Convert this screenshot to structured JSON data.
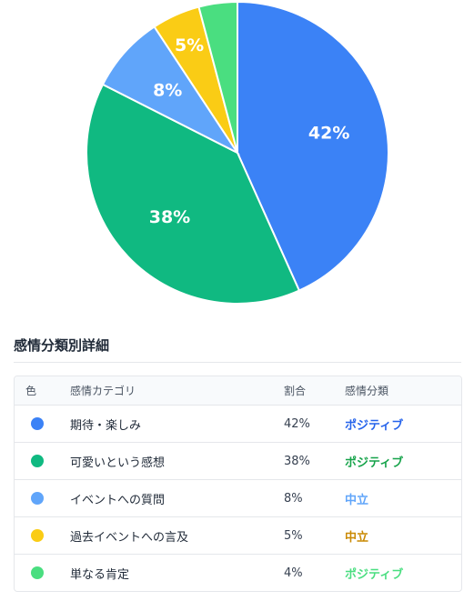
{
  "chart_data": {
    "type": "pie",
    "slices": [
      {
        "label": "期待・楽しみ",
        "value": 42,
        "display": "42%",
        "color": "#3b82f6"
      },
      {
        "label": "可愛いという感想",
        "value": 38,
        "display": "38%",
        "color": "#10b981"
      },
      {
        "label": "イベントへの質問",
        "value": 8,
        "display": "8%",
        "color": "#60a5fa"
      },
      {
        "label": "過去イベントへの言及",
        "value": 5,
        "display": "5%",
        "color": "#facc15"
      },
      {
        "label": "単なる肯定",
        "value": 4,
        "display": "",
        "color": "#4ade80"
      }
    ],
    "start_angle": "top",
    "direction": "clockwise"
  },
  "section": {
    "title": "感情分類別詳細"
  },
  "table": {
    "headers": {
      "color": "色",
      "category": "感情カテゴリ",
      "ratio": "割合",
      "classification": "感情分類"
    },
    "rows": [
      {
        "color": "#3b82f6",
        "category": "期待・楽しみ",
        "ratio": "42%",
        "classification": "ポジティブ",
        "class_color": "#2563eb"
      },
      {
        "color": "#10b981",
        "category": "可愛いという感想",
        "ratio": "38%",
        "classification": "ポジティブ",
        "class_color": "#16a34a"
      },
      {
        "color": "#60a5fa",
        "category": "イベントへの質問",
        "ratio": "8%",
        "classification": "中立",
        "class_color": "#60a5fa"
      },
      {
        "color": "#facc15",
        "category": "過去イベントへの言及",
        "ratio": "5%",
        "classification": "中立",
        "class_color": "#ca8a04"
      },
      {
        "color": "#4ade80",
        "category": "単なる肯定",
        "ratio": "4%",
        "classification": "ポジティブ",
        "class_color": "#4ade80"
      }
    ]
  }
}
